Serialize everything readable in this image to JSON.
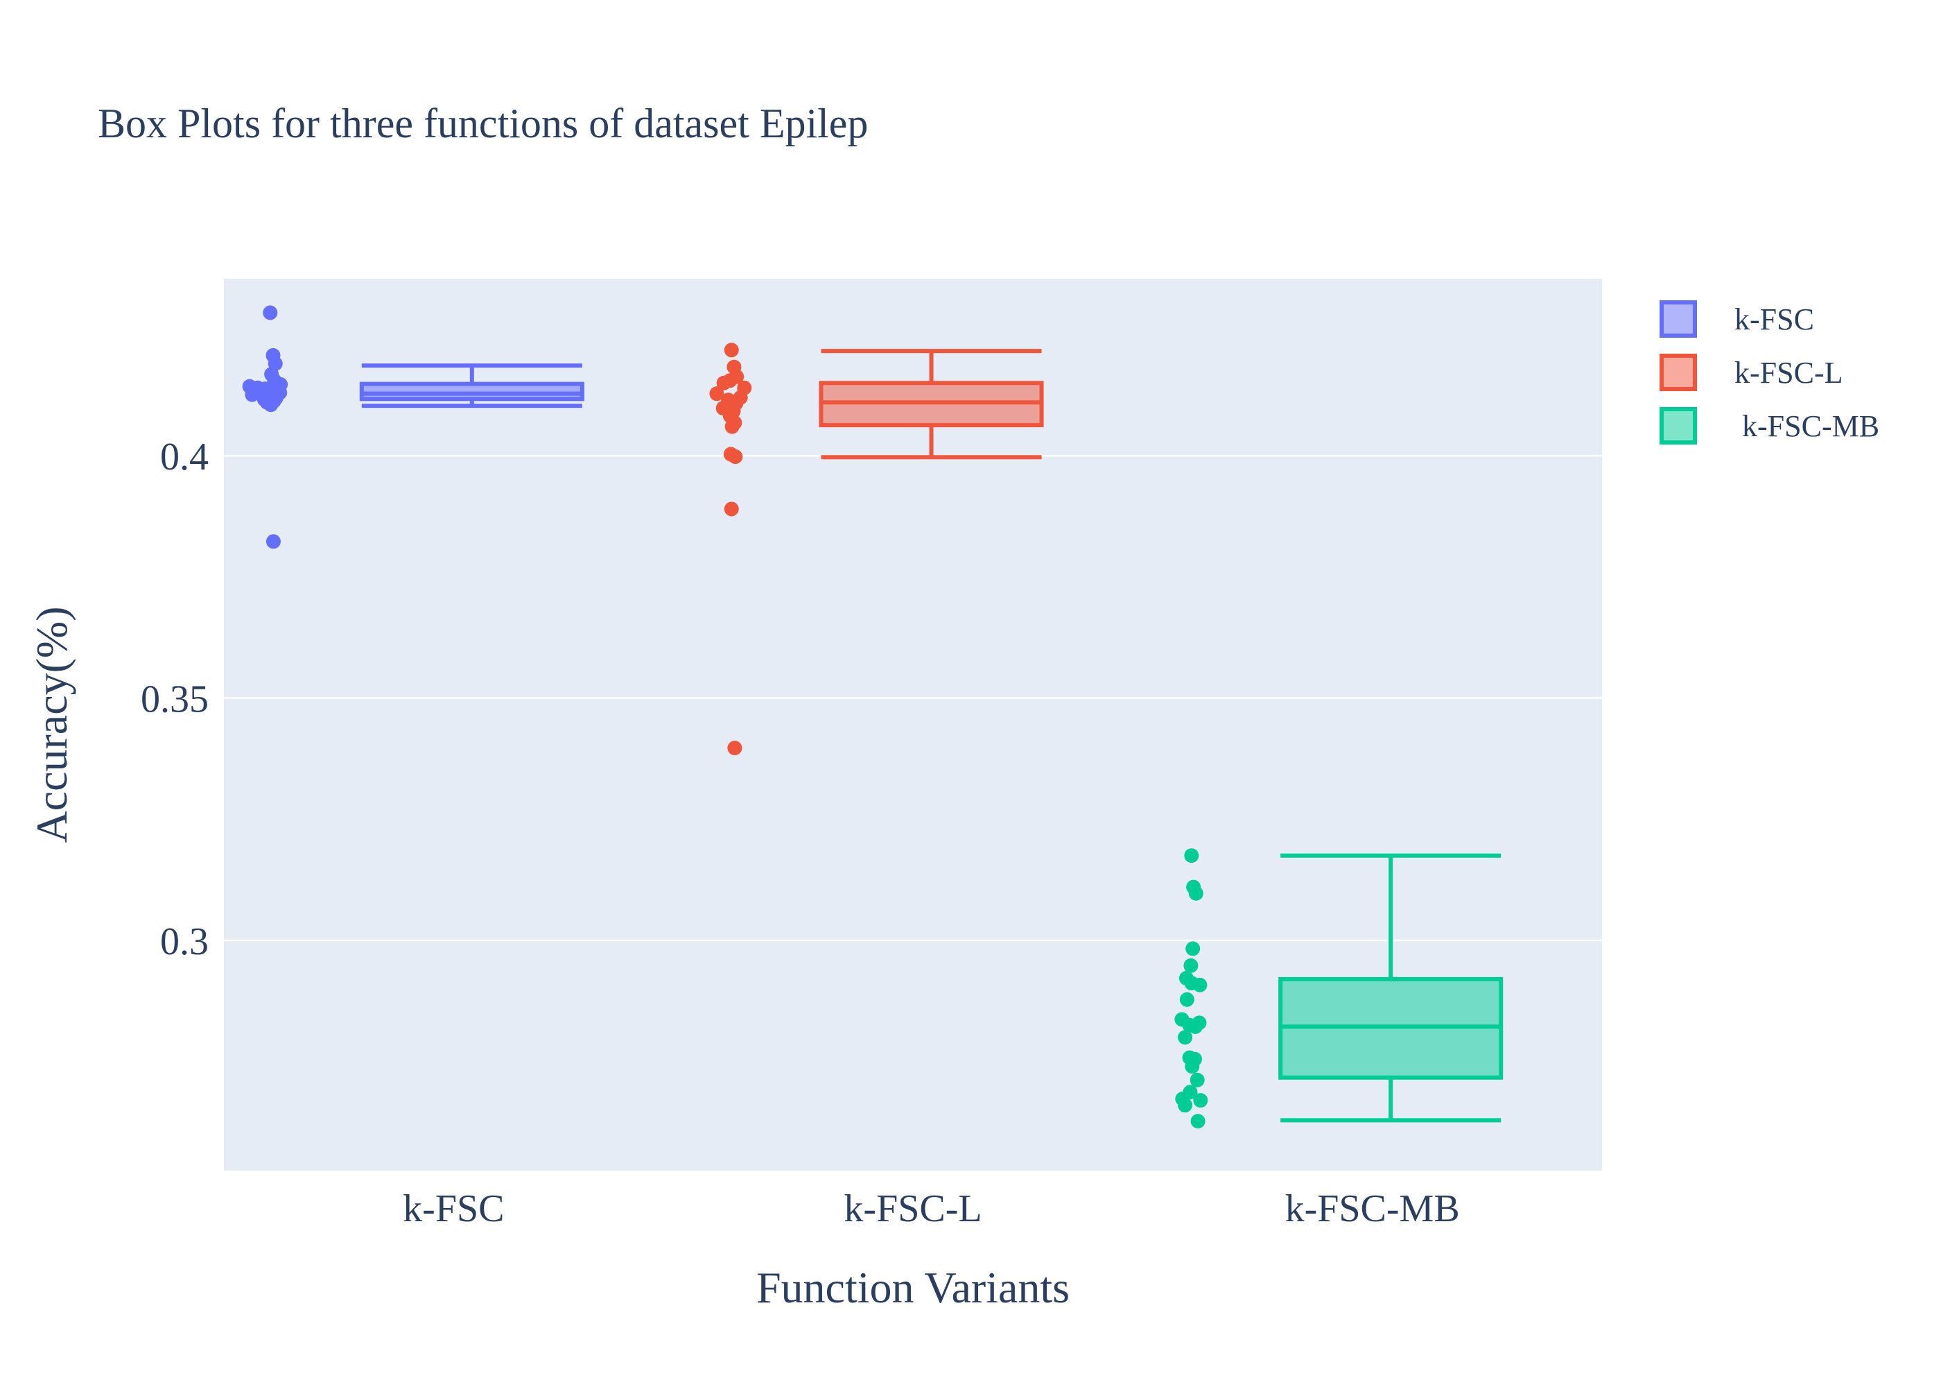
{
  "chart_data": {
    "type": "box",
    "title": "Box Plots for three functions of dataset Epilep",
    "xlabel": "Function Variants",
    "ylabel": "Accuracy(%)",
    "ylim": [
      0.2525,
      0.4365
    ],
    "yticks": [
      0.3,
      0.35,
      0.4
    ],
    "ytick_labels": [
      "0.3",
      "0.35",
      "0.4"
    ],
    "grid": true,
    "legend_position": "top-right",
    "categories": [
      "k-FSC",
      "k-FSC-L",
      "k-FSC-MB"
    ],
    "series": [
      {
        "name": "k-FSC",
        "legend_label": "k-FSC",
        "color": "#636efa",
        "stats": {
          "lowerfence": 0.4103,
          "q1": 0.4117,
          "median": 0.4128,
          "q3": 0.4148,
          "upperfence": 0.4186
        },
        "points": [
          {
            "y": 0.4295,
            "jitter": -0.06
          },
          {
            "y": 0.4207,
            "jitter": 0.03
          },
          {
            "y": 0.419,
            "jitter": 0.1
          },
          {
            "y": 0.4168,
            "jitter": -0.02
          },
          {
            "y": 0.4155,
            "jitter": 0.07
          },
          {
            "y": 0.4147,
            "jitter": 0.26
          },
          {
            "y": 0.4143,
            "jitter": -0.7
          },
          {
            "y": 0.414,
            "jitter": -0.45
          },
          {
            "y": 0.4138,
            "jitter": -0.22
          },
          {
            "y": 0.4135,
            "jitter": 0.16
          },
          {
            "y": 0.4132,
            "jitter": -0.33
          },
          {
            "y": 0.413,
            "jitter": 0.24
          },
          {
            "y": 0.4126,
            "jitter": -0.62
          },
          {
            "y": 0.4124,
            "jitter": 0.02
          },
          {
            "y": 0.4122,
            "jitter": -0.12
          },
          {
            "y": 0.4119,
            "jitter": 0.12
          },
          {
            "y": 0.4116,
            "jitter": -0.24
          },
          {
            "y": 0.4113,
            "jitter": 0.06
          },
          {
            "y": 0.411,
            "jitter": -0.16
          },
          {
            "y": 0.4105,
            "jitter": -0.04
          },
          {
            "y": 0.3823,
            "jitter": 0.04
          }
        ]
      },
      {
        "name": "k-FSC-L",
        "legend_label": "k-FSC-L",
        "color": "#ef553b",
        "stats": {
          "lowerfence": 0.3997,
          "q1": 0.4063,
          "median": 0.411,
          "q3": 0.415,
          "upperfence": 0.4216
        },
        "points": [
          {
            "y": 0.4218,
            "jitter": 0.0
          },
          {
            "y": 0.4183,
            "jitter": 0.08
          },
          {
            "y": 0.4163,
            "jitter": 0.16
          },
          {
            "y": 0.4155,
            "jitter": -0.05
          },
          {
            "y": 0.415,
            "jitter": -0.24
          },
          {
            "y": 0.414,
            "jitter": 0.4
          },
          {
            "y": 0.4128,
            "jitter": -0.46
          },
          {
            "y": 0.412,
            "jitter": 0.28
          },
          {
            "y": 0.4115,
            "jitter": -0.1
          },
          {
            "y": 0.4108,
            "jitter": 0.14
          },
          {
            "y": 0.4098,
            "jitter": -0.26
          },
          {
            "y": 0.4092,
            "jitter": 0.06
          },
          {
            "y": 0.4082,
            "jitter": -0.04
          },
          {
            "y": 0.4068,
            "jitter": 0.1
          },
          {
            "y": 0.406,
            "jitter": 0.02
          },
          {
            "y": 0.4003,
            "jitter": -0.02
          },
          {
            "y": 0.3998,
            "jitter": 0.12
          },
          {
            "y": 0.389,
            "jitter": 0.0
          },
          {
            "y": 0.3397,
            "jitter": 0.1
          }
        ]
      },
      {
        "name": "k-FSC-MB",
        "legend_label": " k-FSC-MB",
        "color": "#00cc96",
        "stats": {
          "lowerfence": 0.2629,
          "q1": 0.2717,
          "median": 0.2822,
          "q3": 0.292,
          "upperfence": 0.3175
        },
        "points": [
          {
            "y": 0.3175,
            "jitter": 0.02
          },
          {
            "y": 0.311,
            "jitter": 0.08
          },
          {
            "y": 0.3097,
            "jitter": 0.16
          },
          {
            "y": 0.2983,
            "jitter": 0.06
          },
          {
            "y": 0.2948,
            "jitter": 0.0
          },
          {
            "y": 0.2922,
            "jitter": -0.14
          },
          {
            "y": 0.2912,
            "jitter": 0.02
          },
          {
            "y": 0.2908,
            "jitter": 0.28
          },
          {
            "y": 0.2878,
            "jitter": -0.12
          },
          {
            "y": 0.2837,
            "jitter": -0.28
          },
          {
            "y": 0.283,
            "jitter": 0.26
          },
          {
            "y": 0.2825,
            "jitter": -0.04
          },
          {
            "y": 0.2822,
            "jitter": 0.14
          },
          {
            "y": 0.28,
            "jitter": -0.18
          },
          {
            "y": 0.2758,
            "jitter": -0.04
          },
          {
            "y": 0.2755,
            "jitter": 0.12
          },
          {
            "y": 0.274,
            "jitter": 0.04
          },
          {
            "y": 0.2712,
            "jitter": 0.2
          },
          {
            "y": 0.2687,
            "jitter": -0.02
          },
          {
            "y": 0.2673,
            "jitter": -0.26
          },
          {
            "y": 0.267,
            "jitter": 0.3
          },
          {
            "y": 0.266,
            "jitter": -0.18
          },
          {
            "y": 0.2627,
            "jitter": 0.22
          }
        ]
      }
    ]
  }
}
